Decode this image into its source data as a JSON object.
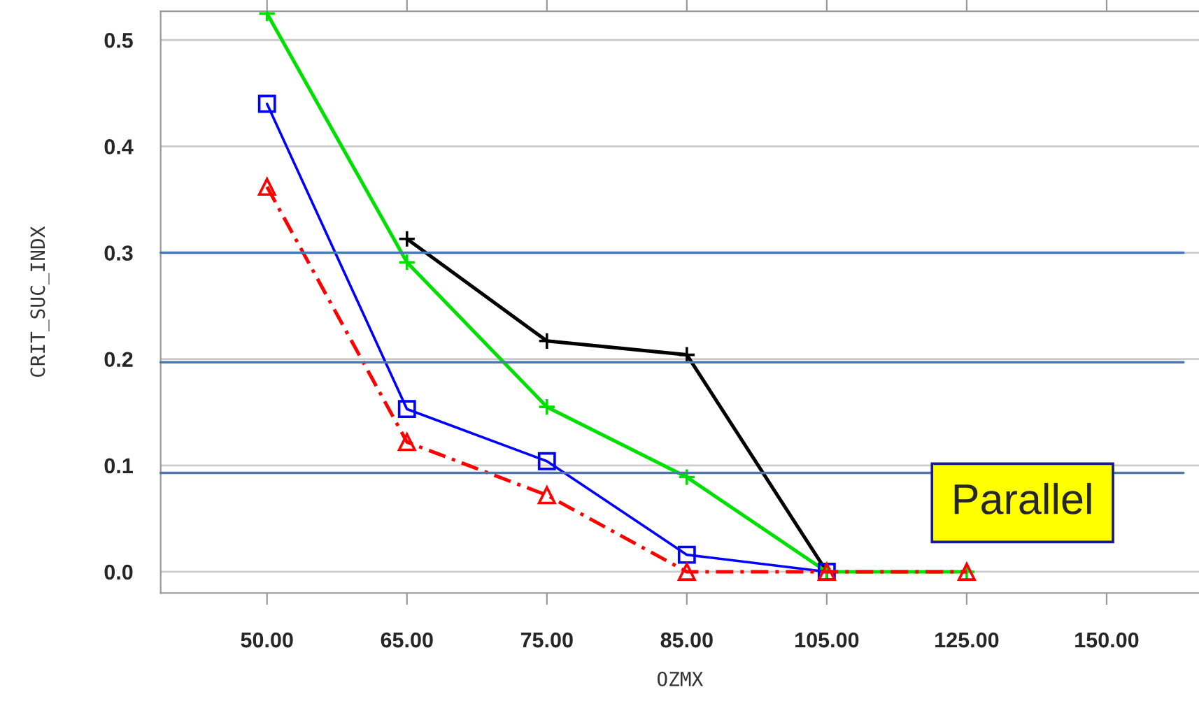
{
  "chart_data": {
    "type": "line",
    "xlabel": "OZMX",
    "ylabel": "CRIT_SUC_INDX",
    "categories": [
      "50.00",
      "65.00",
      "75.00",
      "85.00",
      "105.00",
      "125.00",
      "150.00"
    ],
    "series": [
      {
        "color": "#000000",
        "marker": "cross",
        "line_style": "solid",
        "values": [
          null,
          0.313,
          0.217,
          0.204,
          0,
          null,
          null
        ]
      },
      {
        "color": "#00e000",
        "marker": "cross",
        "line_style": "solid",
        "values": [
          0.525,
          0.291,
          0.155,
          0.089,
          0,
          0,
          null
        ]
      },
      {
        "color": "#0000ff",
        "marker": "square",
        "line_style": "solid",
        "values": [
          0.44,
          0.153,
          0.104,
          0.016,
          0,
          null,
          null
        ]
      },
      {
        "color": "#ff0000",
        "marker": "triangle",
        "line_style": "dashed",
        "values": [
          0.362,
          0.122,
          0.072,
          0,
          0,
          0,
          null
        ]
      }
    ],
    "ylim": [
      -0.02,
      0.527
    ],
    "yticks": [
      {
        "value": 0,
        "label": "0.0"
      },
      {
        "value": 0.1,
        "label": "0.1"
      },
      {
        "value": 0.2,
        "label": "0.2"
      },
      {
        "value": 0.3,
        "label": "0.3"
      },
      {
        "value": 0.4,
        "label": "0.4"
      },
      {
        "value": 0.5,
        "label": "0.5"
      }
    ],
    "grid": "y",
    "ref_lines": [
      {
        "axis": "y",
        "value": 0.3,
        "color": "#4a78b0"
      },
      {
        "axis": "y",
        "value": 0.197,
        "color": "#4a78b0"
      },
      {
        "axis": "y",
        "value": 0.093,
        "color": "#4a78b0"
      }
    ],
    "annotations": [
      "Parallel"
    ]
  }
}
